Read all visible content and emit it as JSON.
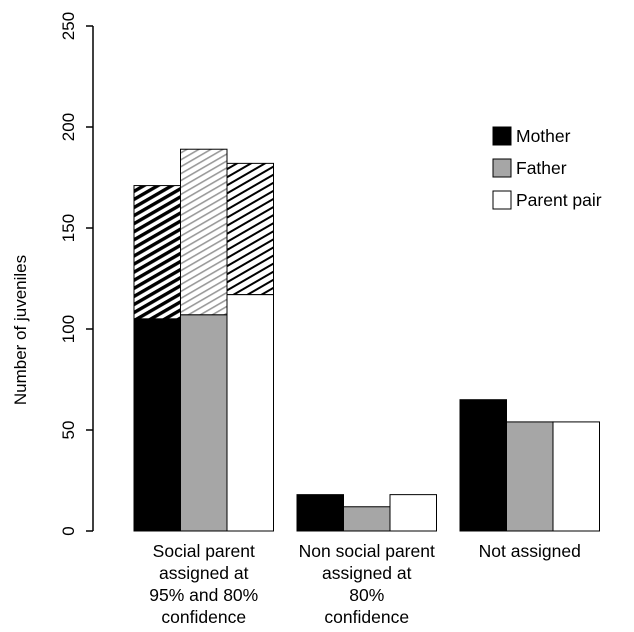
{
  "chart_data": {
    "type": "bar",
    "stacked_segments": "hatched upper segment = 80% confidence portion",
    "categories": [
      [
        "Social parent",
        "assigned at",
        "95% and 80%",
        "confidence"
      ],
      [
        "Non social parent",
        "assigned at",
        "80%",
        "confidence"
      ],
      [
        "Not assigned"
      ]
    ],
    "series": [
      {
        "name": "Mother",
        "color": "#000000",
        "values": [
          105,
          18,
          65
        ],
        "stack_top": [
          171,
          null,
          null
        ]
      },
      {
        "name": "Father",
        "color": "#a6a6a6",
        "values": [
          107,
          12,
          54
        ],
        "stack_top": [
          189,
          null,
          null
        ]
      },
      {
        "name": "Parent pair",
        "color": "#ffffff",
        "values": [
          117,
          18,
          54
        ],
        "stack_top": [
          182,
          null,
          null
        ]
      }
    ],
    "ylabel": "Number of juveniles",
    "ylim": [
      0,
      250
    ],
    "yticks": [
      0,
      50,
      100,
      150,
      200,
      250
    ],
    "legend_position": "top-right",
    "grid": false
  }
}
